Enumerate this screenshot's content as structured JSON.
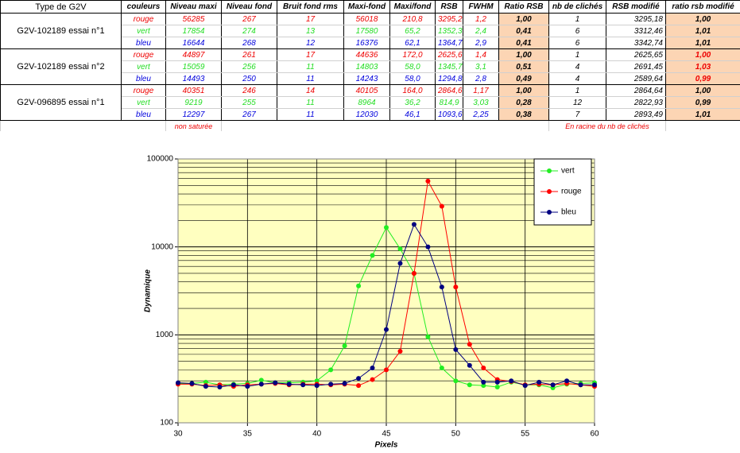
{
  "table": {
    "headers": [
      "Type de G2V",
      "couleurs",
      "Niveau maxi",
      "Niveau fond",
      "Bruit fond rms",
      "Maxi-fond",
      "Maxi/fond",
      "RSB",
      "FWHM",
      "Ratio RSB",
      "nb de clichés",
      "RSB modifié",
      "ratio rsb modifié"
    ],
    "groups": [
      {
        "label": "G2V-102189 essai n°1",
        "rows": [
          [
            "rouge",
            "56285",
            "267",
            "17",
            "56018",
            "210,8",
            "3295,2",
            "1,2",
            "1,00",
            "1",
            "3295,18",
            "1,00"
          ],
          [
            "vert",
            "17854",
            "274",
            "13",
            "17580",
            "65,2",
            "1352,3",
            "2,4",
            "0,41",
            "6",
            "3312,46",
            "1,01"
          ],
          [
            "bleu",
            "16644",
            "268",
            "12",
            "16376",
            "62,1",
            "1364,7",
            "2,9",
            "0,41",
            "6",
            "3342,74",
            "1,01"
          ]
        ]
      },
      {
        "label": "G2V-102189 essai n°2",
        "rows": [
          [
            "rouge",
            "44897",
            "261",
            "17",
            "44636",
            "172,0",
            "2625,6",
            "1,4",
            "1,00",
            "1",
            "2625,65",
            "1,00"
          ],
          [
            "vert",
            "15059",
            "256",
            "11",
            "14803",
            "58,0",
            "1345,7",
            "3,1",
            "0,51",
            "4",
            "2691,45",
            "1,03"
          ],
          [
            "bleu",
            "14493",
            "250",
            "11",
            "14243",
            "58,0",
            "1294,8",
            "2,8",
            "0,49",
            "4",
            "2589,64",
            "0,99"
          ]
        ]
      },
      {
        "label": "G2V-096895 essai n°1",
        "rows": [
          [
            "rouge",
            "40351",
            "246",
            "14",
            "40105",
            "164,0",
            "2864,6",
            "1,17",
            "1,00",
            "1",
            "2864,64",
            "1,00"
          ],
          [
            "vert",
            "9219",
            "255",
            "11",
            "8964",
            "36,2",
            "814,9",
            "3,03",
            "0,28",
            "12",
            "2822,93",
            "0,99"
          ],
          [
            "bleu",
            "12297",
            "267",
            "11",
            "12030",
            "46,1",
            "1093,6",
            "2,25",
            "0,38",
            "7",
            "2893,49",
            "1,01"
          ]
        ]
      }
    ],
    "notes": [
      "non saturée",
      "En racine du nb de clichés"
    ]
  },
  "chart_data": {
    "type": "line",
    "x_label": "Pixels",
    "y_label": "Dynamique",
    "x": [
      30,
      31,
      32,
      33,
      34,
      35,
      36,
      37,
      38,
      39,
      40,
      41,
      42,
      43,
      44,
      45,
      46,
      47,
      48,
      49,
      50,
      51,
      52,
      53,
      54,
      55,
      56,
      57,
      58,
      59,
      60
    ],
    "series": [
      {
        "name": "vert",
        "color": "#22ee22",
        "values": [
          280,
          280,
          290,
          270,
          275,
          280,
          305,
          285,
          285,
          290,
          300,
          400,
          750,
          3600,
          8000,
          16600,
          9500,
          5000,
          950,
          420,
          300,
          270,
          265,
          255,
          290,
          270,
          270,
          250,
          275,
          280,
          285
        ]
      },
      {
        "name": "rouge",
        "color": "#ff0000",
        "values": [
          275,
          275,
          265,
          270,
          260,
          270,
          275,
          280,
          270,
          275,
          275,
          270,
          275,
          265,
          310,
          400,
          650,
          5000,
          56000,
          29000,
          3500,
          780,
          420,
          310,
          295,
          270,
          275,
          270,
          280,
          270,
          260
        ]
      },
      {
        "name": "bleu",
        "color": "#000080",
        "values": [
          285,
          280,
          260,
          255,
          270,
          260,
          275,
          285,
          275,
          270,
          265,
          275,
          280,
          320,
          420,
          1150,
          6500,
          18000,
          10000,
          3500,
          680,
          450,
          290,
          290,
          300,
          265,
          290,
          270,
          300,
          270,
          270
        ]
      }
    ],
    "xlim": [
      30,
      60
    ],
    "xticks": [
      30,
      35,
      40,
      45,
      50,
      55,
      60
    ],
    "ylim": [
      100,
      100000
    ],
    "yticks": [
      100,
      1000,
      10000,
      100000
    ],
    "log_y": true,
    "grid": true,
    "minor_grid": true,
    "legend": "top-right"
  }
}
